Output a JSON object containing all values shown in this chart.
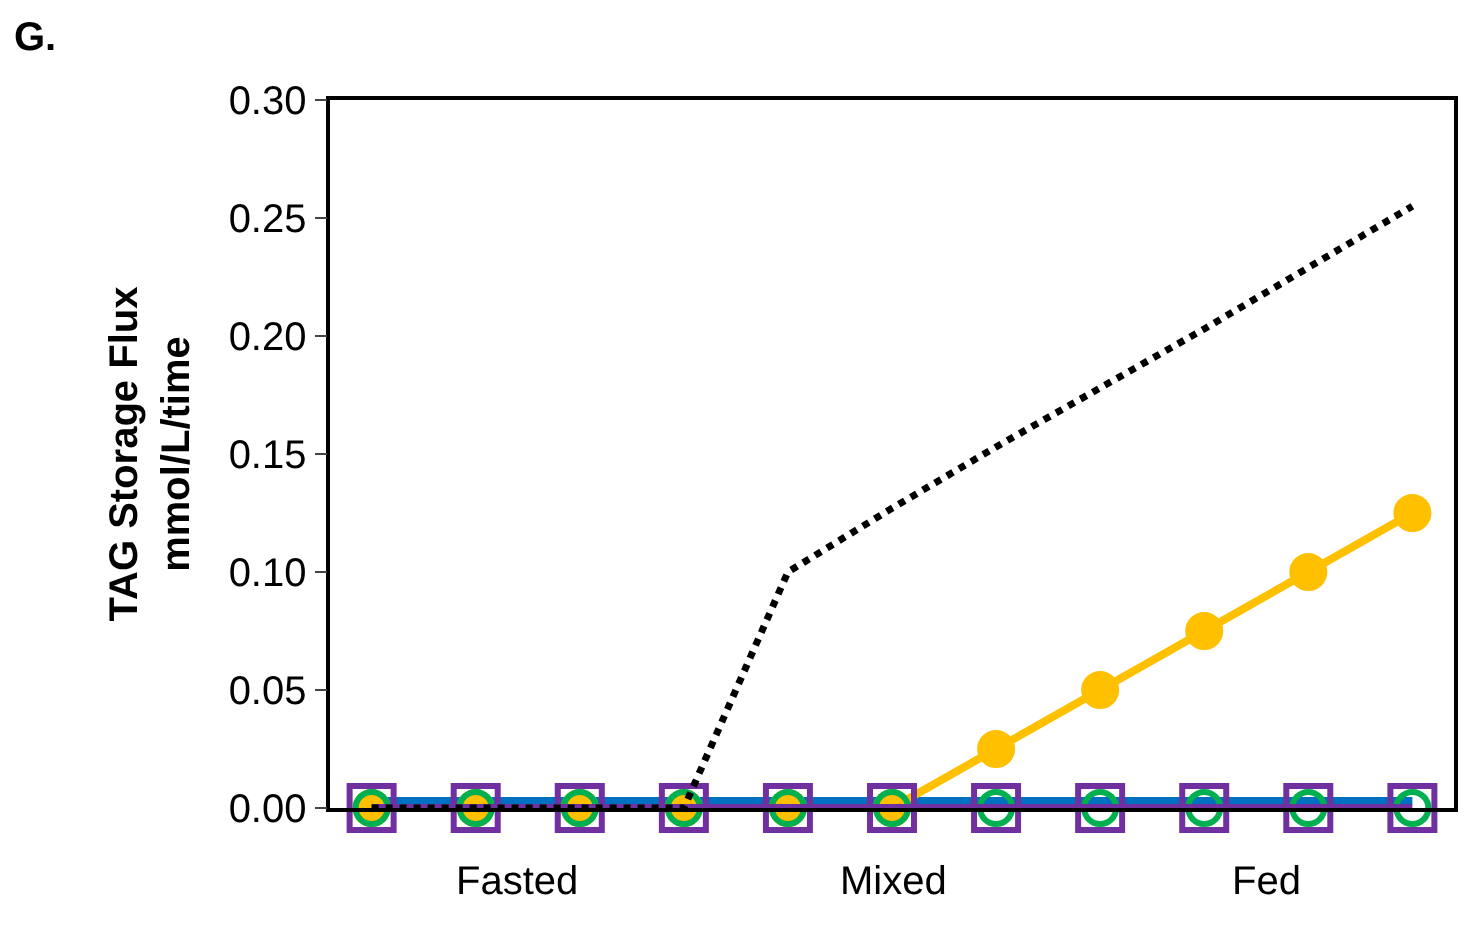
{
  "chart_data": {
    "type": "line",
    "title": "G.",
    "ylabel": "TAG Storage Flux\nmmol/L/time",
    "categories": [
      null,
      null,
      null,
      null,
      null,
      null,
      null,
      null,
      null,
      null,
      null
    ],
    "ylim": [
      0,
      0.3
    ],
    "yticks": [
      {
        "value": 0,
        "label": "0.00"
      },
      {
        "value": 0.05,
        "label": "0.05"
      },
      {
        "value": 0.1,
        "label": "0.10"
      },
      {
        "value": 0.15,
        "label": "0.15"
      },
      {
        "value": 0.2,
        "label": "0.20"
      },
      {
        "value": 0.25,
        "label": "0.25"
      },
      {
        "value": 0.3,
        "label": "0.30"
      }
    ],
    "tick_labels": "y",
    "annotations": [
      "Fasted",
      "Mixed",
      "Fed"
    ],
    "series": [
      {
        "color": "#0070c0",
        "values": [
          0.003,
          0.003,
          0.003,
          0.003,
          0.003,
          0.003,
          0.003,
          0.003,
          0.003,
          0.003,
          0.003
        ],
        "marker": "none",
        "line_style": "solid"
      },
      {
        "color": "#ffc000",
        "values": [
          0,
          0,
          0,
          0,
          0,
          0,
          0.025,
          0.05,
          0.075,
          0.1,
          0.125
        ],
        "marker": "circle",
        "line_style": "solid"
      },
      {
        "type": "scatter",
        "color": "#00b050",
        "values": [
          0,
          0,
          0,
          0,
          0,
          0,
          0,
          0,
          0,
          0,
          0
        ],
        "marker": "circle"
      },
      {
        "type": "scatter",
        "color": "#7030a0",
        "values": [
          0,
          0,
          0,
          0,
          0,
          0,
          0,
          0,
          0,
          0,
          0
        ],
        "marker": "square",
        "line_style": "solid"
      },
      {
        "color": "#000000",
        "values": [
          0,
          0,
          0,
          0,
          0.1,
          0.127,
          0.153,
          0.178,
          0.203,
          0.229,
          0.255
        ],
        "marker": "none",
        "line_style": "dotted"
      }
    ]
  }
}
